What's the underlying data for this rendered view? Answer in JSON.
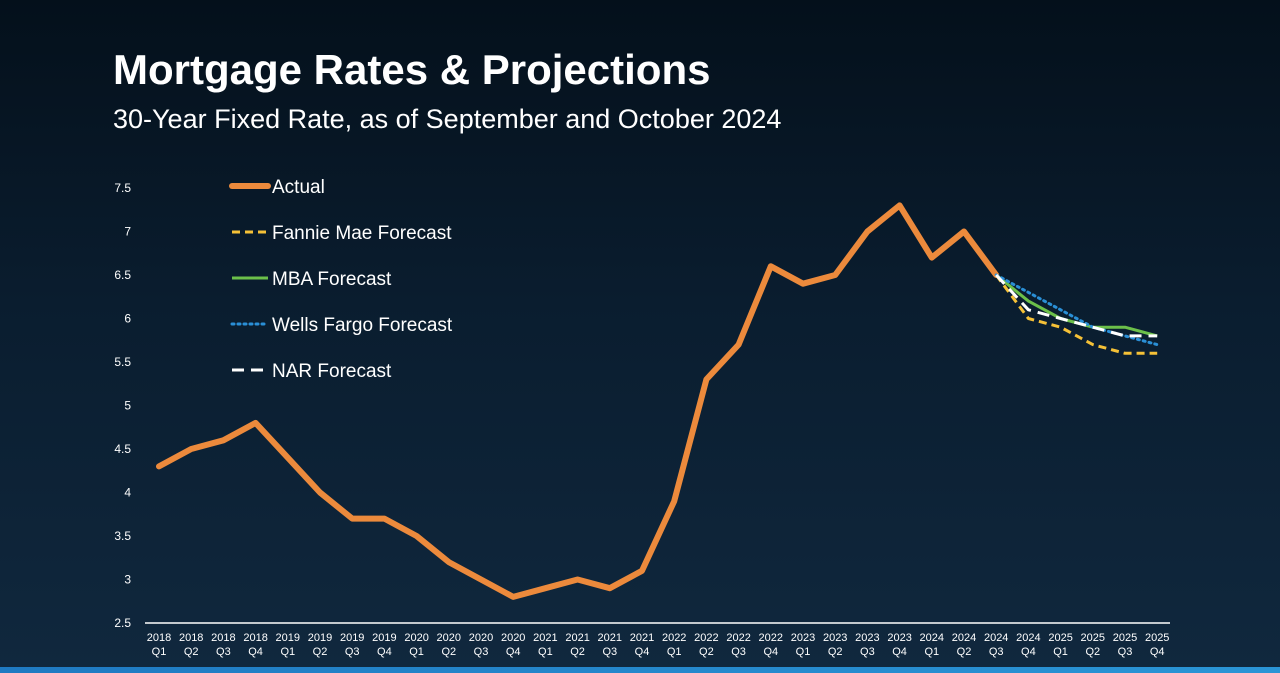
{
  "header": {
    "title": "Mortgage Rates & Projections",
    "subtitle": "30-Year Fixed Rate, as of September and October 2024"
  },
  "chart_data": {
    "type": "line",
    "title": "Mortgage Rates & Projections",
    "subtitle": "30-Year Fixed Rate, as of September and October 2024",
    "xlabel": "",
    "ylabel": "",
    "ylim": [
      2.5,
      7.5
    ],
    "yticks": [
      "2.5",
      "3",
      "3.5",
      "4",
      "4.5",
      "5",
      "5.5",
      "6",
      "6.5",
      "7",
      "7.5"
    ],
    "grid": false,
    "legend_position": "top-left",
    "categories": [
      [
        "2018",
        "Q1"
      ],
      [
        "2018",
        "Q2"
      ],
      [
        "2018",
        "Q3"
      ],
      [
        "2018",
        "Q4"
      ],
      [
        "2019",
        "Q1"
      ],
      [
        "2019",
        "Q2"
      ],
      [
        "2019",
        "Q3"
      ],
      [
        "2019",
        "Q4"
      ],
      [
        "2020",
        "Q1"
      ],
      [
        "2020",
        "Q2"
      ],
      [
        "2020",
        "Q3"
      ],
      [
        "2020",
        "Q4"
      ],
      [
        "2021",
        "Q1"
      ],
      [
        "2021",
        "Q2"
      ],
      [
        "2021",
        "Q3"
      ],
      [
        "2021",
        "Q4"
      ],
      [
        "2022",
        "Q1"
      ],
      [
        "2022",
        "Q2"
      ],
      [
        "2022",
        "Q3"
      ],
      [
        "2022",
        "Q4"
      ],
      [
        "2023",
        "Q1"
      ],
      [
        "2023",
        "Q2"
      ],
      [
        "2023",
        "Q3"
      ],
      [
        "2023",
        "Q4"
      ],
      [
        "2024",
        "Q1"
      ],
      [
        "2024",
        "Q2"
      ],
      [
        "2024",
        "Q3"
      ],
      [
        "2024",
        "Q4"
      ],
      [
        "2025",
        "Q1"
      ],
      [
        "2025",
        "Q2"
      ],
      [
        "2025",
        "Q3"
      ],
      [
        "2025",
        "Q4"
      ]
    ],
    "series": [
      {
        "name": "Actual",
        "color": "#ec8a3c",
        "dash": "solid",
        "values": [
          4.3,
          4.5,
          4.6,
          4.8,
          4.4,
          4.0,
          3.7,
          3.7,
          3.5,
          3.2,
          3.0,
          2.8,
          2.9,
          3.0,
          2.9,
          3.1,
          3.9,
          5.3,
          5.7,
          6.6,
          6.4,
          6.5,
          7.0,
          7.3,
          6.7,
          7.0,
          6.5,
          null,
          null,
          null,
          null,
          null
        ]
      },
      {
        "name": "Fannie Mae Forecast",
        "color": "#f5c137",
        "dash": "dashed",
        "values": [
          null,
          null,
          null,
          null,
          null,
          null,
          null,
          null,
          null,
          null,
          null,
          null,
          null,
          null,
          null,
          null,
          null,
          null,
          null,
          null,
          null,
          null,
          null,
          null,
          null,
          null,
          6.5,
          6.0,
          5.9,
          5.7,
          5.6,
          5.6
        ]
      },
      {
        "name": "MBA Forecast",
        "color": "#6cc04a",
        "dash": "solid",
        "values": [
          null,
          null,
          null,
          null,
          null,
          null,
          null,
          null,
          null,
          null,
          null,
          null,
          null,
          null,
          null,
          null,
          null,
          null,
          null,
          null,
          null,
          null,
          null,
          null,
          null,
          null,
          6.5,
          6.2,
          6.0,
          5.9,
          5.9,
          5.8
        ]
      },
      {
        "name": "Wells Fargo Forecast",
        "color": "#2a8fd6",
        "dash": "dotted",
        "values": [
          null,
          null,
          null,
          null,
          null,
          null,
          null,
          null,
          null,
          null,
          null,
          null,
          null,
          null,
          null,
          null,
          null,
          null,
          null,
          null,
          null,
          null,
          null,
          null,
          null,
          null,
          6.5,
          6.3,
          6.1,
          5.9,
          5.8,
          5.7
        ]
      },
      {
        "name": "NAR Forecast",
        "color": "#ffffff",
        "dash": "long-dashed",
        "values": [
          null,
          null,
          null,
          null,
          null,
          null,
          null,
          null,
          null,
          null,
          null,
          null,
          null,
          null,
          null,
          null,
          null,
          null,
          null,
          null,
          null,
          null,
          null,
          null,
          null,
          null,
          6.5,
          6.1,
          6.0,
          5.9,
          5.8,
          5.8
        ]
      }
    ]
  }
}
